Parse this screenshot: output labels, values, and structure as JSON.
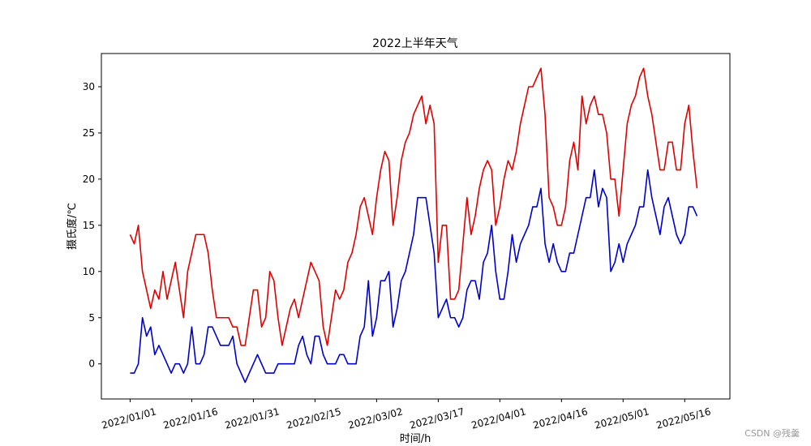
{
  "chart_data": {
    "type": "line",
    "title": "2022上半年天气",
    "xlabel": "时间/h",
    "ylabel": "摄氏度/℃",
    "x_start": "2022/01/01",
    "x_end": "2022/05/19",
    "xlim": [
      "2021/12/25",
      "2022/05/27"
    ],
    "ylim": [
      -3.8,
      33.6
    ],
    "grid": false,
    "x_ticks": [
      "2022/01/01",
      "2022/01/16",
      "2022/01/31",
      "2022/02/15",
      "2022/03/02",
      "2022/03/17",
      "2022/04/01",
      "2022/04/16",
      "2022/05/01",
      "2022/05/16"
    ],
    "y_ticks": [
      0,
      5,
      10,
      15,
      20,
      25,
      30
    ],
    "series": [
      {
        "color": "#e00000",
        "values": [
          14,
          13,
          15,
          10,
          8,
          6,
          8,
          7,
          10,
          7,
          9,
          11,
          8,
          5,
          10,
          12,
          14,
          14,
          14,
          12,
          8,
          5,
          5,
          5,
          5,
          4,
          4,
          2,
          2,
          5,
          8,
          8,
          4,
          5,
          10,
          9,
          5,
          2,
          4,
          6,
          7,
          5,
          7,
          9,
          11,
          10,
          9,
          4,
          2,
          5,
          8,
          7,
          8,
          11,
          12,
          14,
          17,
          18,
          16,
          14,
          18,
          21,
          23,
          22,
          15,
          18,
          22,
          24,
          25,
          27,
          28,
          29,
          26,
          28,
          26,
          11,
          15,
          15,
          7,
          7,
          8,
          13,
          18,
          14,
          16,
          19,
          21,
          22,
          21,
          15,
          17,
          20,
          22,
          21,
          23,
          26,
          28,
          30,
          30,
          31,
          32,
          27,
          18,
          17,
          15,
          15,
          17,
          22,
          24,
          21,
          29,
          26,
          28,
          29,
          27,
          27,
          25,
          20,
          20,
          16,
          21,
          26,
          28,
          29,
          31,
          32,
          29,
          27,
          24,
          21,
          21,
          24,
          24,
          21,
          21,
          26,
          28,
          23,
          19
        ]
      },
      {
        "color": "#0000cc",
        "values": [
          -1,
          -1,
          0,
          5,
          3,
          4,
          1,
          2,
          1,
          0,
          -1,
          0,
          0,
          -1,
          0,
          4,
          0,
          0,
          1,
          4,
          4,
          3,
          2,
          2,
          2,
          3,
          0,
          -1,
          -2,
          -1,
          0,
          1,
          0,
          -1,
          -1,
          -1,
          0,
          0,
          0,
          0,
          0,
          2,
          3,
          1,
          0,
          3,
          3,
          1,
          0,
          0,
          0,
          1,
          1,
          0,
          0,
          0,
          3,
          4,
          9,
          3,
          5,
          9,
          9,
          10,
          4,
          6,
          9,
          10,
          12,
          14,
          18,
          18,
          18,
          15,
          12,
          5,
          6,
          7,
          5,
          5,
          4,
          5,
          8,
          9,
          9,
          7,
          11,
          12,
          15,
          10,
          7,
          7,
          10,
          14,
          11,
          13,
          14,
          15,
          17,
          17,
          19,
          13,
          11,
          13,
          11,
          10,
          10,
          12,
          12,
          14,
          16,
          18,
          18,
          21,
          17,
          19,
          18,
          10,
          11,
          13,
          11,
          13,
          14,
          15,
          17,
          17,
          21,
          18,
          16,
          14,
          17,
          18,
          16,
          14,
          13,
          14,
          17,
          17,
          16
        ]
      }
    ]
  },
  "watermark": "CSDN @残羹"
}
